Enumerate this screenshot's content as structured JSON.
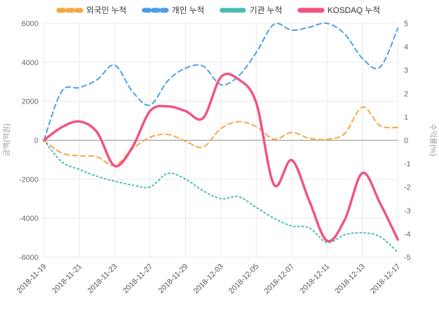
{
  "chart_data": {
    "type": "line",
    "title": "",
    "legend_position": "top",
    "grid": true,
    "x": [
      "2018-11-19",
      "2018-11-20",
      "2018-11-21",
      "2018-11-22",
      "2018-11-23",
      "2018-11-26",
      "2018-11-27",
      "2018-11-28",
      "2018-11-29",
      "2018-11-30",
      "2018-12-03",
      "2018-12-04",
      "2018-12-05",
      "2018-12-06",
      "2018-12-07",
      "2018-12-10",
      "2018-12-11",
      "2018-12-12",
      "2018-12-13",
      "2018-12-14",
      "2018-12-17"
    ],
    "x_tick_labels": [
      "2018-11-19",
      "2018-11-21",
      "2018-11-23",
      "2018-11-27",
      "2018-11-29",
      "2018-12-03",
      "2018-12-05",
      "2018-12-07",
      "2018-12-11",
      "2018-12-13",
      "2018-12-17"
    ],
    "left_axis": {
      "label": "금액(억원)",
      "min": -6000,
      "max": 6000,
      "ticks": [
        6000,
        4000,
        2000,
        0,
        -2000,
        -4000,
        -6000
      ]
    },
    "right_axis": {
      "label": "수익률(%)",
      "min": -5,
      "max": 5,
      "ticks": [
        5,
        4,
        3,
        2,
        1,
        0,
        -1,
        -2,
        -3,
        -4,
        -5
      ]
    },
    "series": [
      {
        "key": "foreigner",
        "name": "외국인 누적",
        "axis": "left",
        "color": "#f6a540",
        "dash": "7 5",
        "legend_dash": "7 6",
        "width": 2,
        "values": [
          0,
          -650,
          -800,
          -850,
          -1300,
          -450,
          150,
          300,
          -50,
          -350,
          600,
          950,
          700,
          50,
          400,
          100,
          50,
          350,
          1700,
          750,
          650
        ]
      },
      {
        "key": "individual",
        "name": "개인 누적",
        "axis": "left",
        "color": "#4a9eea",
        "dash": "7 5",
        "legend_dash": "7 6",
        "width": 2,
        "values": [
          0,
          2500,
          2700,
          3100,
          3850,
          2500,
          1800,
          3050,
          3700,
          3800,
          2850,
          3300,
          4500,
          5950,
          5650,
          5800,
          6000,
          5450,
          4200,
          3750,
          5750
        ]
      },
      {
        "key": "institution",
        "name": "기관 누적",
        "axis": "left",
        "color": "#45bdb2",
        "dash": "2 4",
        "legend_dash": "3 4",
        "width": 2,
        "values": [
          0,
          -1100,
          -1500,
          -1850,
          -2100,
          -2300,
          -2400,
          -1700,
          -2000,
          -2600,
          -3000,
          -2900,
          -3450,
          -4000,
          -4400,
          -4500,
          -5250,
          -4850,
          -4750,
          -4950,
          -5750
        ]
      },
      {
        "key": "kosdaq",
        "name": "KOSDAQ 누적",
        "axis": "right",
        "color": "#f2527f",
        "dash": null,
        "legend_dash": null,
        "width": 3.5,
        "values": [
          0,
          0.55,
          0.8,
          0.35,
          -1.1,
          -0.3,
          1.25,
          1.45,
          1.25,
          0.95,
          2.7,
          2.6,
          1.6,
          -1.9,
          -0.85,
          -2.6,
          -4.3,
          -3.4,
          -1.4,
          -2.7,
          -4.25
        ]
      }
    ]
  },
  "colors": {
    "background": "#ffffff",
    "grid": "#e8e8e8",
    "zero_line": "#909090",
    "tick_text": "#666666",
    "axis_title": "#999999",
    "legend_text": "#333333"
  }
}
